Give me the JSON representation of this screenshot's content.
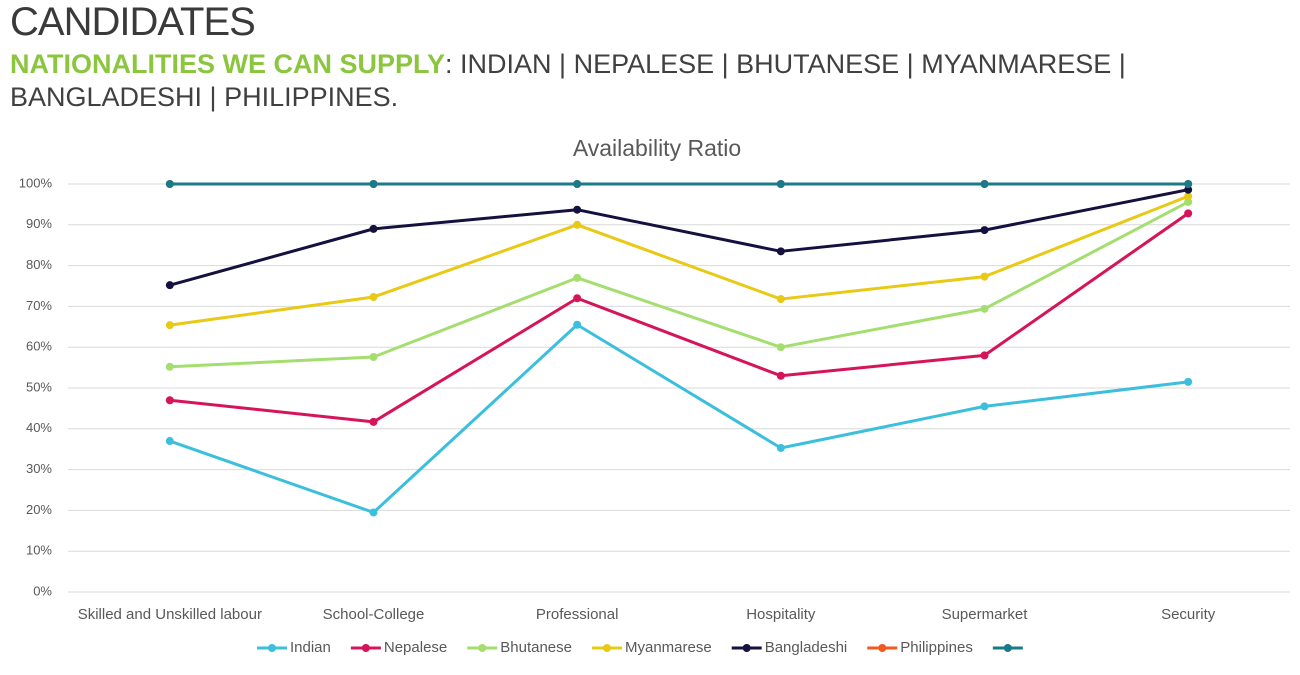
{
  "header": {
    "title": "CANDIDATES",
    "subtitle_highlight": "NATIONALITIES WE CAN SUPPLY",
    "subtitle_rest": ": INDIAN | NEPALESE | BHUTANESE | MYANMARESE | BANGLADESHI | PHILIPPINES."
  },
  "chart_data": {
    "type": "line",
    "title": "Availability Ratio",
    "categories": [
      "Skilled and Unskilled labour",
      "School-College",
      "Professional",
      "Hospitality",
      "Supermarket",
      "Security"
    ],
    "series": [
      {
        "name": "Indian",
        "color": "#3bbfdc",
        "values": [
          37,
          19.5,
          65.5,
          35.3,
          45.5,
          51.5
        ]
      },
      {
        "name": "Nepalese",
        "color": "#d6145a",
        "values": [
          47,
          41.7,
          72,
          53,
          58,
          92.8
        ]
      },
      {
        "name": "Bhutanese",
        "color": "#a3de6e",
        "values": [
          55.2,
          57.6,
          77,
          60,
          69.4,
          95.6
        ]
      },
      {
        "name": "Myanmarese",
        "color": "#e8c914",
        "values": [
          65.4,
          72.3,
          90,
          71.8,
          77.3,
          97
        ]
      },
      {
        "name": "Bangladeshi",
        "color": "#14113f",
        "values": [
          75.2,
          89,
          93.7,
          83.5,
          88.7,
          98.6
        ]
      },
      {
        "name": "Philippines",
        "color": "#f05a1e",
        "values": [
          100,
          100,
          100,
          100,
          100,
          100
        ]
      },
      {
        "name": null,
        "color": "#1a7a8a",
        "values": [
          100,
          100,
          100,
          100,
          100,
          100
        ]
      }
    ],
    "ylim": [
      0,
      100
    ],
    "yticks": [
      {
        "value": 0,
        "label": "0%"
      },
      {
        "value": 10,
        "label": "10%"
      },
      {
        "value": 20,
        "label": "20%"
      },
      {
        "value": 30,
        "label": "30%"
      },
      {
        "value": 40,
        "label": "40%"
      },
      {
        "value": 50,
        "label": "50%"
      },
      {
        "value": 60,
        "label": "60%"
      },
      {
        "value": 70,
        "label": "70%"
      },
      {
        "value": 80,
        "label": "80%"
      },
      {
        "value": 90,
        "label": "90%"
      },
      {
        "value": 100,
        "label": "100%"
      }
    ],
    "grid": true,
    "legend": "bottom"
  }
}
